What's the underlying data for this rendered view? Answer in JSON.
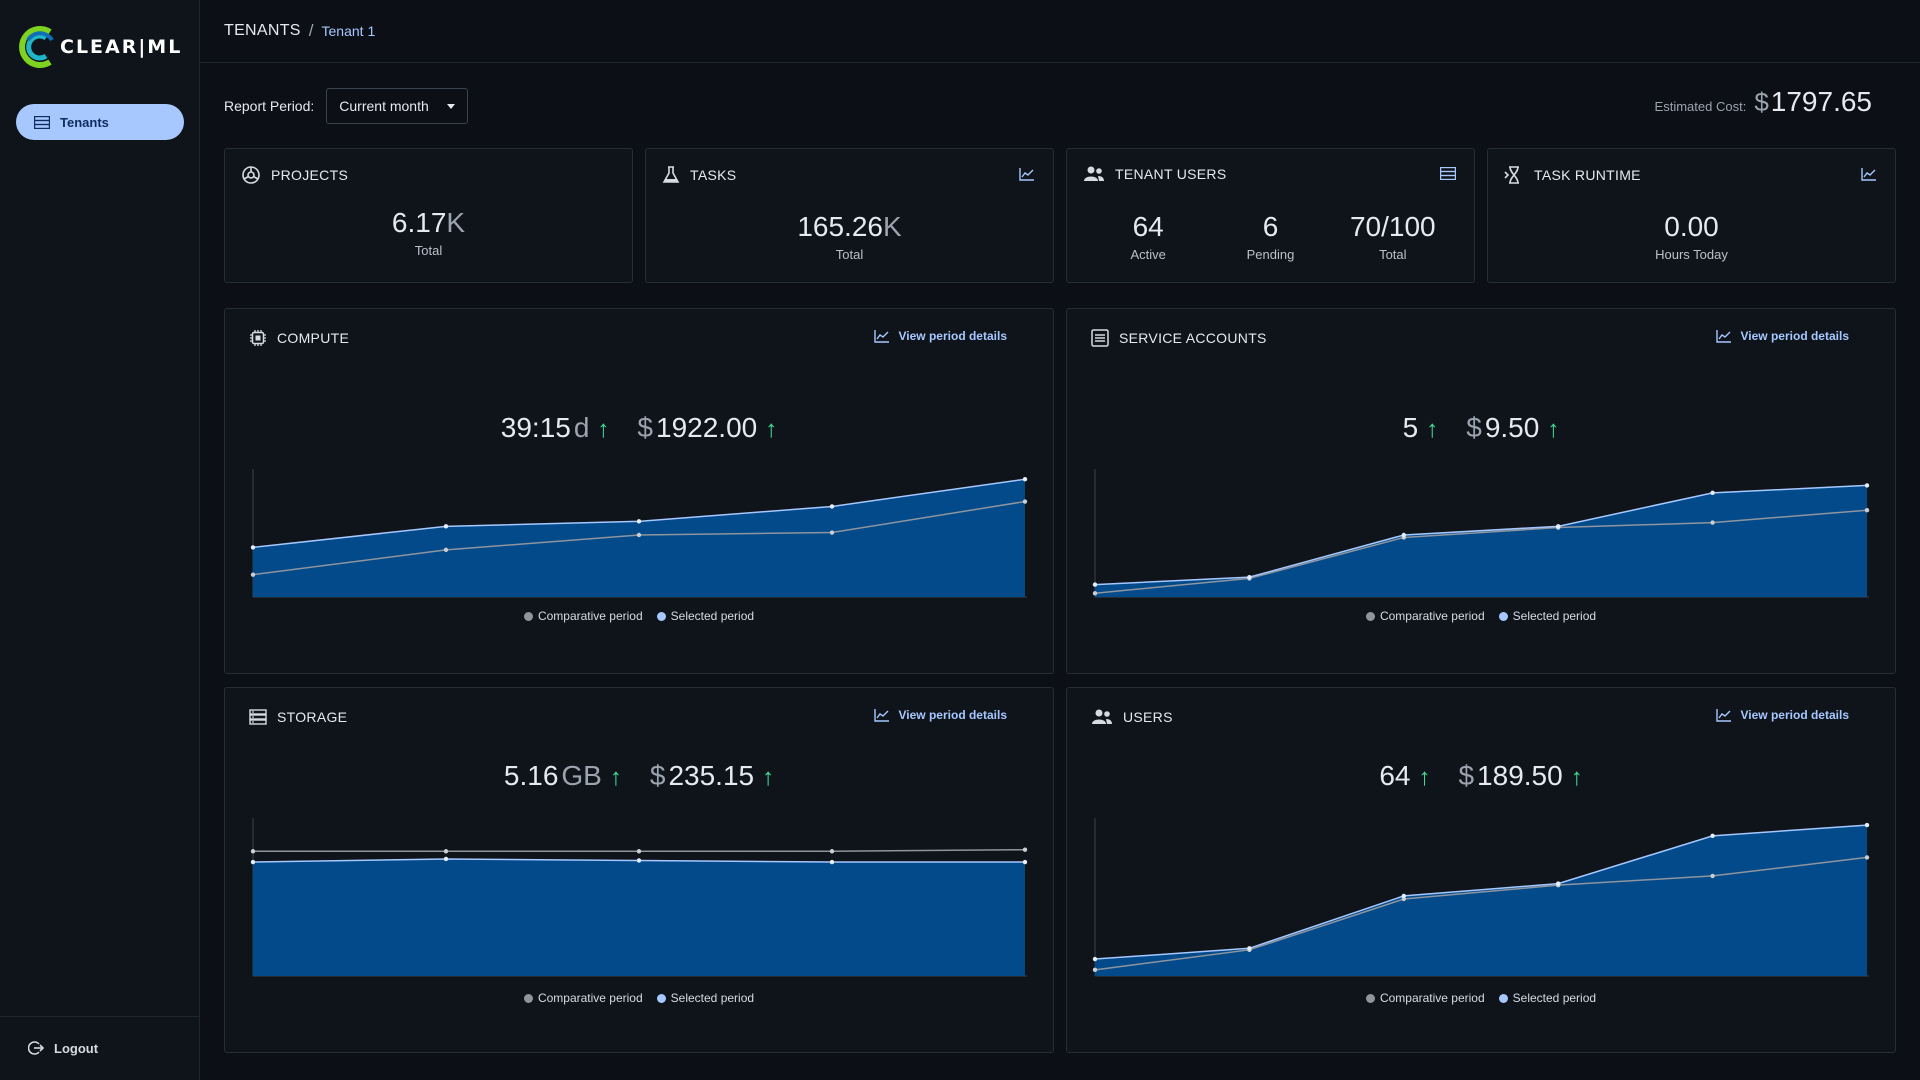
{
  "app": {
    "logo_text": "CLEAR|ML"
  },
  "sidebar": {
    "items": [
      {
        "label": "Tenants",
        "icon": "table-icon"
      }
    ],
    "logout_label": "Logout"
  },
  "breadcrumb": {
    "root": "TENANTS",
    "separator": "/",
    "current": "Tenant 1"
  },
  "report": {
    "label": "Report Period:",
    "selected": "Current month"
  },
  "estimated_cost": {
    "label": "Estimated Cost:",
    "currency": "$",
    "value": "1797.65"
  },
  "cards": {
    "projects": {
      "title": "PROJECTS",
      "value": "6.17",
      "unit": "K",
      "caption": "Total"
    },
    "tasks": {
      "title": "TASKS",
      "value": "165.26",
      "unit": "K",
      "caption": "Total"
    },
    "tenant_users": {
      "title": "TENANT USERS",
      "stats": [
        {
          "value": "64",
          "caption": "Active"
        },
        {
          "value": "6",
          "caption": "Pending"
        },
        {
          "value": "70/100",
          "caption": "Total"
        }
      ]
    },
    "task_runtime": {
      "title": "TASK RUNTIME",
      "value": "0.00",
      "caption": "Hours Today"
    }
  },
  "panels": {
    "compute": {
      "title": "COMPUTE",
      "link": "View period details",
      "kpi1_value": "39:15",
      "kpi1_unit": "d",
      "kpi2_currency": "$",
      "kpi2_value": "1922.00"
    },
    "service_accounts": {
      "title": "SERVICE ACCOUNTS",
      "link": "View period details",
      "kpi1_value": "5",
      "kpi2_currency": "$",
      "kpi2_value": "9.50"
    },
    "storage": {
      "title": "STORAGE",
      "link": "View period details",
      "kpi1_value": "5.16",
      "kpi1_unit": "GB",
      "kpi2_currency": "$",
      "kpi2_value": "235.15"
    },
    "users": {
      "title": "USERS",
      "link": "View period details",
      "kpi1_value": "64",
      "kpi2_currency": "$",
      "kpi2_value": "189.50"
    }
  },
  "legend": {
    "comparative": "Comparative period",
    "selected": "Selected period"
  },
  "colors": {
    "accent": "#a6c8ff",
    "area_fill": "#024a8a",
    "comparative": "#8e959f",
    "up_arrow": "#3ddc97"
  },
  "chart_data": [
    {
      "type": "area",
      "name": "compute",
      "x": [
        1,
        2,
        3,
        4,
        5
      ],
      "series": [
        {
          "name": "Selected period",
          "values": [
            40,
            57,
            61,
            73,
            95
          ]
        },
        {
          "name": "Comparative period",
          "values": [
            18,
            38,
            50,
            52,
            77
          ]
        }
      ],
      "ylim": [
        0,
        100
      ]
    },
    {
      "type": "area",
      "name": "service_accounts",
      "x": [
        1,
        2,
        3,
        4,
        5,
        6
      ],
      "series": [
        {
          "name": "Selected period",
          "values": [
            10,
            16,
            50,
            57,
            84,
            90
          ]
        },
        {
          "name": "Comparative period",
          "values": [
            3,
            15,
            48,
            56,
            60,
            70
          ]
        }
      ],
      "ylim": [
        0,
        100
      ]
    },
    {
      "type": "area",
      "name": "storage",
      "x": [
        1,
        2,
        3,
        4,
        5
      ],
      "series": [
        {
          "name": "Selected period",
          "values": [
            74,
            76,
            75,
            74,
            74
          ]
        },
        {
          "name": "Comparative period",
          "values": [
            81,
            81,
            81,
            81,
            82
          ]
        }
      ],
      "ylim": [
        0,
        100
      ]
    },
    {
      "type": "area",
      "name": "users",
      "x": [
        1,
        2,
        3,
        4,
        5,
        6
      ],
      "series": [
        {
          "name": "Selected period",
          "values": [
            11,
            18,
            52,
            60,
            91,
            98
          ]
        },
        {
          "name": "Comparative period",
          "values": [
            4,
            17,
            50,
            59,
            65,
            77
          ]
        }
      ],
      "ylim": [
        0,
        100
      ]
    }
  ]
}
